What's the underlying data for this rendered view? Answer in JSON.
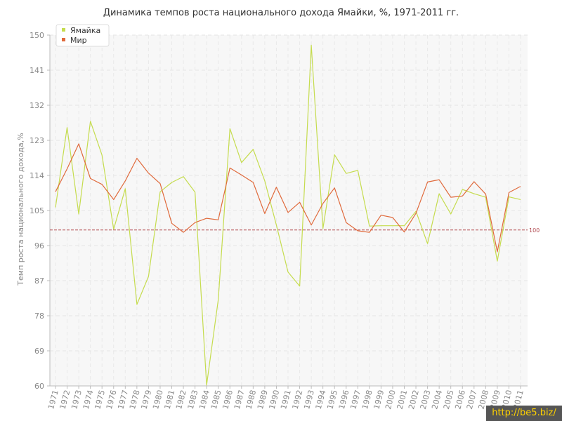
{
  "chart_data": {
    "type": "line",
    "title": "Динамика темпов роста национального дохода Ямайки, %, 1971-2011 гг.",
    "ylabel": "Темп роста национального дохода,%",
    "xlabel": "",
    "ylim": [
      60,
      150
    ],
    "yticks": [
      "60",
      "69",
      "78",
      "87",
      "96",
      "105",
      "114",
      "123",
      "132",
      "141",
      "150"
    ],
    "ytick_values": [
      60,
      69,
      78,
      87,
      96,
      105,
      114,
      123,
      132,
      141,
      150
    ],
    "categories": [
      "1971",
      "1972",
      "1973",
      "1974",
      "1975",
      "1976",
      "1977",
      "1978",
      "1979",
      "1980",
      "1981",
      "1982",
      "1983",
      "1984",
      "1985",
      "1986",
      "1987",
      "1988",
      "1989",
      "1990",
      "1991",
      "1992",
      "1993",
      "1994",
      "1995",
      "1996",
      "1997",
      "1998",
      "1999",
      "2000",
      "2001",
      "2002",
      "2003",
      "2004",
      "2005",
      "2006",
      "2007",
      "2008",
      "2009",
      "2010",
      "2011"
    ],
    "series": [
      {
        "name": "Ямайка",
        "color": "#c5dc4e",
        "values": [
          105.8,
          126.3,
          104.1,
          127.9,
          119.2,
          100.2,
          110.6,
          80.9,
          88.1,
          109.8,
          112.2,
          113.7,
          109.7,
          60.2,
          82.1,
          126.0,
          117.3,
          120.7,
          112.6,
          101.3,
          89.2,
          85.6,
          147.4,
          100.4,
          119.3,
          114.5,
          115.3,
          101.0,
          101.1,
          101.1,
          101.1,
          104.8,
          96.5,
          109.3,
          104.1,
          110.4,
          109.3,
          108.4,
          92.0,
          108.5,
          107.8
        ]
      },
      {
        "name": "Мир",
        "color": "#e06a3c",
        "values": [
          109.8,
          115.7,
          122.1,
          113.2,
          111.7,
          107.8,
          112.6,
          118.4,
          114.6,
          111.9,
          101.7,
          99.4,
          101.9,
          103.0,
          102.6,
          115.9,
          114.1,
          112.2,
          104.2,
          111.0,
          104.5,
          107.1,
          101.3,
          106.8,
          110.8,
          101.9,
          99.8,
          99.4,
          103.8,
          103.2,
          99.5,
          104.3,
          112.3,
          112.9,
          108.4,
          108.7,
          112.4,
          109.2,
          94.4,
          109.6,
          111.2
        ]
      }
    ],
    "reference_line": {
      "value": 100,
      "label": "100",
      "color": "#b0484f"
    },
    "legend_position": "top-left",
    "grid": true
  },
  "watermark": "http://be5.biz/"
}
